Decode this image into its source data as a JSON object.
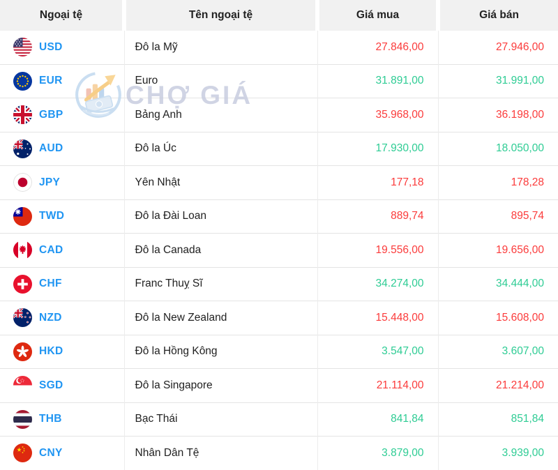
{
  "table": {
    "headers": [
      "Ngoại tệ",
      "Tên ngoại tệ",
      "Giá mua",
      "Giá bán"
    ],
    "rows": [
      {
        "code": "USD",
        "name": "Đô la Mỹ",
        "buy": "27.846,00",
        "sell": "27.946,00",
        "trend": "down",
        "flag": "usd-flag-icon"
      },
      {
        "code": "EUR",
        "name": "Euro",
        "buy": "31.891,00",
        "sell": "31.991,00",
        "trend": "up",
        "flag": "eur-flag-icon"
      },
      {
        "code": "GBP",
        "name": "Bảng Anh",
        "buy": "35.968,00",
        "sell": "36.198,00",
        "trend": "down",
        "flag": "gbp-flag-icon"
      },
      {
        "code": "AUD",
        "name": "Đô la Úc",
        "buy": "17.930,00",
        "sell": "18.050,00",
        "trend": "up",
        "flag": "aud-flag-icon"
      },
      {
        "code": "JPY",
        "name": "Yên Nhật",
        "buy": "177,18",
        "sell": "178,28",
        "trend": "down",
        "flag": "jpy-flag-icon"
      },
      {
        "code": "TWD",
        "name": "Đô la Đài Loan",
        "buy": "889,74",
        "sell": "895,74",
        "trend": "down",
        "flag": "twd-flag-icon"
      },
      {
        "code": "CAD",
        "name": "Đô la Canada",
        "buy": "19.556,00",
        "sell": "19.656,00",
        "trend": "down",
        "flag": "cad-flag-icon"
      },
      {
        "code": "CHF",
        "name": "Franc Thuỵ Sĩ",
        "buy": "34.274,00",
        "sell": "34.444,00",
        "trend": "up",
        "flag": "chf-flag-icon"
      },
      {
        "code": "NZD",
        "name": "Đô la New Zealand",
        "buy": "15.448,00",
        "sell": "15.608,00",
        "trend": "down",
        "flag": "nzd-flag-icon"
      },
      {
        "code": "HKD",
        "name": "Đô la Hồng Kông",
        "buy": "3.547,00",
        "sell": "3.607,00",
        "trend": "up",
        "flag": "hkd-flag-icon"
      },
      {
        "code": "SGD",
        "name": "Đô la Singapore",
        "buy": "21.114,00",
        "sell": "21.214,00",
        "trend": "down",
        "flag": "sgd-flag-icon"
      },
      {
        "code": "THB",
        "name": "Bạc Thái",
        "buy": "841,84",
        "sell": "851,84",
        "trend": "up",
        "flag": "thb-flag-icon"
      },
      {
        "code": "CNY",
        "name": "Nhân Dân Tệ",
        "buy": "3.879,00",
        "sell": "3.939,00",
        "trend": "up",
        "flag": "cny-flag-icon"
      }
    ]
  },
  "watermark": {
    "text": "CHỢ GIÁ",
    "logo_icon": "chogia-logo-icon"
  },
  "colors": {
    "price_up": "#2ecc94",
    "price_down": "#fb3b3b",
    "currency_code": "#2095f2",
    "header_bg": "#f1f1f1",
    "watermark_text": "#c5cade"
  }
}
